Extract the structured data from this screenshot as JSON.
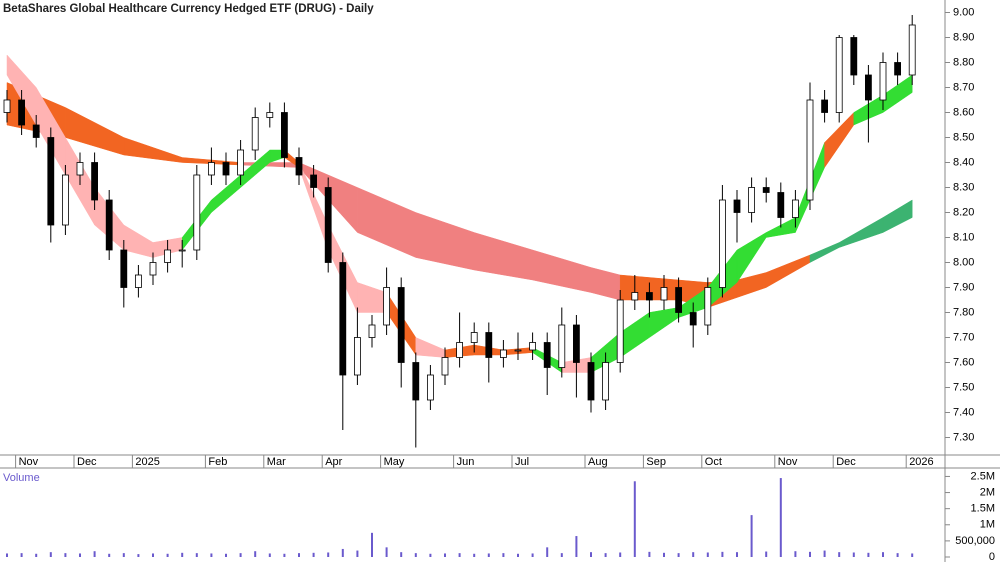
{
  "chart_data": [
    {
      "type": "candlestick",
      "title": "BetaShares Global Healthcare Currency Hedged ETF (DRUG) - Daily",
      "categories": [
        null,
        "Nov",
        null,
        null,
        null,
        "Dec",
        null,
        null,
        null,
        "2025",
        null,
        null,
        null,
        null,
        "Feb",
        null,
        null,
        null,
        "Mar",
        null,
        null,
        null,
        "Apr",
        null,
        null,
        null,
        "May",
        null,
        null,
        null,
        null,
        "Jun",
        null,
        null,
        null,
        "Jul",
        null,
        null,
        null,
        null,
        "Aug",
        null,
        null,
        null,
        "Sep",
        null,
        null,
        null,
        "Oct",
        null,
        null,
        null,
        null,
        "Nov",
        null,
        null,
        null,
        "Dec",
        null,
        null,
        null,
        null,
        "2026"
      ],
      "open": [
        8.6,
        8.65,
        8.55,
        8.5,
        8.15,
        8.35,
        8.4,
        8.25,
        8.05,
        7.9,
        7.95,
        8.0,
        8.05,
        8.05,
        8.35,
        8.4,
        8.35,
        8.45,
        8.58,
        8.6,
        8.42,
        8.35,
        8.3,
        8.0,
        7.55,
        7.7,
        7.75,
        7.9,
        7.6,
        7.45,
        7.55,
        7.62,
        7.68,
        7.72,
        7.62,
        7.65,
        7.65,
        7.68,
        7.58,
        7.75,
        7.6,
        7.45,
        7.6,
        7.85,
        7.88,
        7.85,
        7.9,
        7.8,
        7.75,
        7.9,
        8.25,
        8.2,
        8.3,
        8.28,
        8.18,
        8.25,
        8.65,
        8.6,
        8.9,
        8.75,
        8.65,
        8.8,
        8.75
      ],
      "high": [
        8.69,
        8.69,
        8.59,
        8.54,
        8.39,
        8.44,
        8.44,
        8.29,
        8.09,
        7.99,
        8.04,
        8.09,
        8.09,
        8.39,
        8.46,
        8.44,
        8.49,
        8.62,
        8.64,
        8.64,
        8.46,
        8.39,
        8.34,
        8.04,
        7.82,
        7.79,
        7.98,
        7.94,
        7.64,
        7.59,
        7.66,
        7.8,
        7.76,
        7.76,
        7.69,
        7.72,
        7.72,
        7.72,
        7.82,
        7.79,
        7.64,
        7.64,
        7.89,
        7.95,
        7.92,
        7.95,
        7.94,
        7.84,
        7.94,
        8.31,
        8.29,
        8.34,
        8.34,
        8.32,
        8.29,
        8.72,
        8.69,
        8.91,
        8.91,
        8.79,
        8.84,
        8.84,
        8.99
      ],
      "low": [
        8.56,
        8.51,
        8.46,
        8.08,
        8.11,
        8.31,
        8.21,
        8.01,
        7.82,
        7.86,
        7.91,
        7.96,
        7.98,
        8.01,
        8.31,
        8.31,
        8.31,
        8.41,
        8.54,
        8.38,
        8.31,
        8.26,
        7.96,
        7.33,
        7.51,
        7.66,
        7.71,
        7.5,
        7.26,
        7.41,
        7.51,
        7.58,
        7.64,
        7.52,
        7.58,
        7.61,
        7.61,
        7.47,
        7.54,
        7.46,
        7.4,
        7.41,
        7.56,
        7.81,
        7.78,
        7.81,
        7.76,
        7.66,
        7.71,
        7.86,
        8.08,
        8.16,
        8.24,
        8.14,
        8.14,
        8.21,
        8.56,
        8.56,
        8.71,
        8.48,
        8.61,
        8.71,
        8.71
      ],
      "close": [
        8.65,
        8.55,
        8.5,
        8.15,
        8.35,
        8.4,
        8.25,
        8.05,
        7.9,
        7.95,
        8.0,
        8.05,
        8.05,
        8.35,
        8.4,
        8.35,
        8.45,
        8.58,
        8.6,
        8.42,
        8.35,
        8.3,
        8.0,
        7.55,
        7.7,
        7.75,
        7.9,
        7.6,
        7.45,
        7.55,
        7.62,
        7.68,
        7.72,
        7.62,
        7.65,
        7.65,
        7.68,
        7.58,
        7.75,
        7.6,
        7.45,
        7.6,
        7.85,
        7.88,
        7.85,
        7.9,
        7.8,
        7.75,
        7.9,
        8.25,
        8.2,
        8.3,
        8.28,
        8.18,
        8.25,
        8.65,
        8.6,
        8.9,
        8.75,
        8.65,
        8.8,
        8.75,
        8.95
      ],
      "ribbons": [
        {
          "x": [
            0,
            4,
            8,
            12,
            16,
            20,
            24,
            28,
            32,
            36,
            40,
            42,
            46,
            48,
            50,
            52,
            55,
            57,
            60,
            62
          ],
          "upper": [
            8.72,
            8.62,
            8.5,
            8.42,
            8.4,
            8.4,
            8.3,
            8.2,
            8.12,
            8.05,
            7.98,
            7.95,
            7.93,
            7.92,
            7.93,
            7.96,
            8.03,
            8.08,
            8.18,
            8.25
          ],
          "lower": [
            8.55,
            8.5,
            8.43,
            8.4,
            8.39,
            8.38,
            8.12,
            8.02,
            7.97,
            7.93,
            7.88,
            7.85,
            7.85,
            7.82,
            7.86,
            7.9,
            8.0,
            8.06,
            8.12,
            8.18
          ],
          "colors": [
            "#f26522",
            "#f26522",
            "#f26522",
            "#f26522",
            "#f08080",
            "#f08080",
            "#f08080",
            "#f08080",
            "#f08080",
            "#f08080",
            "#f08080",
            "#f26522",
            "#f26522",
            "#f26522",
            "#f26522",
            "#f26522",
            "#3cb371",
            "#3cb371",
            "#3cb371"
          ]
        },
        {
          "x": [
            0,
            2,
            4,
            6,
            8,
            10,
            12,
            14,
            16,
            18,
            19,
            20,
            22,
            24,
            26,
            28,
            30,
            32,
            34,
            36,
            38,
            40,
            42,
            44,
            46,
            48,
            50,
            52,
            54,
            56,
            58,
            60,
            62
          ],
          "upper": [
            8.83,
            8.7,
            8.5,
            8.3,
            8.15,
            8.08,
            8.1,
            8.25,
            8.35,
            8.45,
            8.45,
            8.4,
            8.15,
            7.92,
            7.88,
            7.7,
            7.65,
            7.67,
            7.65,
            7.66,
            7.6,
            7.62,
            7.72,
            7.8,
            7.82,
            7.9,
            8.05,
            8.12,
            8.18,
            8.48,
            8.6,
            8.67,
            8.75
          ],
          "lower": [
            8.75,
            8.55,
            8.35,
            8.15,
            8.05,
            8.02,
            8.05,
            8.2,
            8.3,
            8.4,
            8.42,
            8.38,
            8.05,
            7.8,
            7.8,
            7.63,
            7.62,
            7.63,
            7.63,
            7.64,
            7.56,
            7.56,
            7.62,
            7.7,
            7.78,
            7.82,
            7.92,
            8.1,
            8.12,
            8.38,
            8.55,
            8.6,
            8.68
          ],
          "colors": [
            "#ffb3b3",
            "#ffb3b3",
            "#ffb3b3",
            "#ffb3b3",
            "#ffb3b3",
            "#ffb3b3",
            "#33dd33",
            "#33dd33",
            "#33dd33",
            "#33dd33",
            "#f26522",
            "#ffb3b3",
            "#ffb3b3",
            "#ffb3b3",
            "#f26522",
            "#ffb3b3",
            "#f26522",
            "#f26522",
            "#f26522",
            "#33dd33",
            "#ffb3b3",
            "#33dd33",
            "#33dd33",
            "#33dd33",
            "#33dd33",
            "#33dd33",
            "#33dd33",
            "#33dd33",
            "#33dd33",
            "#f26522",
            "#33dd33",
            "#33dd33"
          ]
        }
      ],
      "ylim": [
        7.23,
        9.05
      ],
      "yticks": [
        {
          "value": 7.3,
          "label": "7.30"
        },
        {
          "value": 7.4,
          "label": "7.40"
        },
        {
          "value": 7.5,
          "label": "7.50"
        },
        {
          "value": 7.6,
          "label": "7.60"
        },
        {
          "value": 7.7,
          "label": "7.70"
        },
        {
          "value": 7.8,
          "label": "7.80"
        },
        {
          "value": 7.9,
          "label": "7.90"
        },
        {
          "value": 8.0,
          "label": "8.00"
        },
        {
          "value": 8.1,
          "label": "8.10"
        },
        {
          "value": 8.2,
          "label": "8.20"
        },
        {
          "value": 8.3,
          "label": "8.30"
        },
        {
          "value": 8.4,
          "label": "8.40"
        },
        {
          "value": 8.5,
          "label": "8.50"
        },
        {
          "value": 8.6,
          "label": "8.60"
        },
        {
          "value": 8.7,
          "label": "8.70"
        },
        {
          "value": 8.8,
          "label": "8.80"
        },
        {
          "value": 8.9,
          "label": "8.90"
        },
        {
          "value": 9.0,
          "label": "9.00"
        }
      ]
    },
    {
      "type": "bar",
      "title": "Volume",
      "color": "#6a5acd",
      "values": [
        110000,
        120000,
        100000,
        150000,
        120000,
        110000,
        180000,
        100000,
        120000,
        90000,
        110000,
        100000,
        130000,
        120000,
        110000,
        100000,
        120000,
        180000,
        110000,
        100000,
        120000,
        130000,
        140000,
        250000,
        200000,
        750000,
        300000,
        150000,
        120000,
        100000,
        110000,
        120000,
        100000,
        110000,
        120000,
        100000,
        110000,
        300000,
        120000,
        650000,
        150000,
        120000,
        140000,
        2350000,
        160000,
        130000,
        120000,
        150000,
        140000,
        160000,
        150000,
        1300000,
        170000,
        2450000,
        180000,
        160000,
        200000,
        150000,
        140000,
        130000,
        150000,
        120000,
        110000
      ],
      "ylim": [
        0,
        2700000
      ],
      "yticks": [
        0,
        {
          "value": 500000,
          "label": "500,000"
        },
        {
          "value": 1000000,
          "label": "1M"
        },
        {
          "value": 1500000,
          "label": "1.5M"
        },
        {
          "value": 2000000,
          "label": "2M"
        },
        {
          "value": 2500000,
          "label": "2.5M"
        }
      ]
    }
  ]
}
